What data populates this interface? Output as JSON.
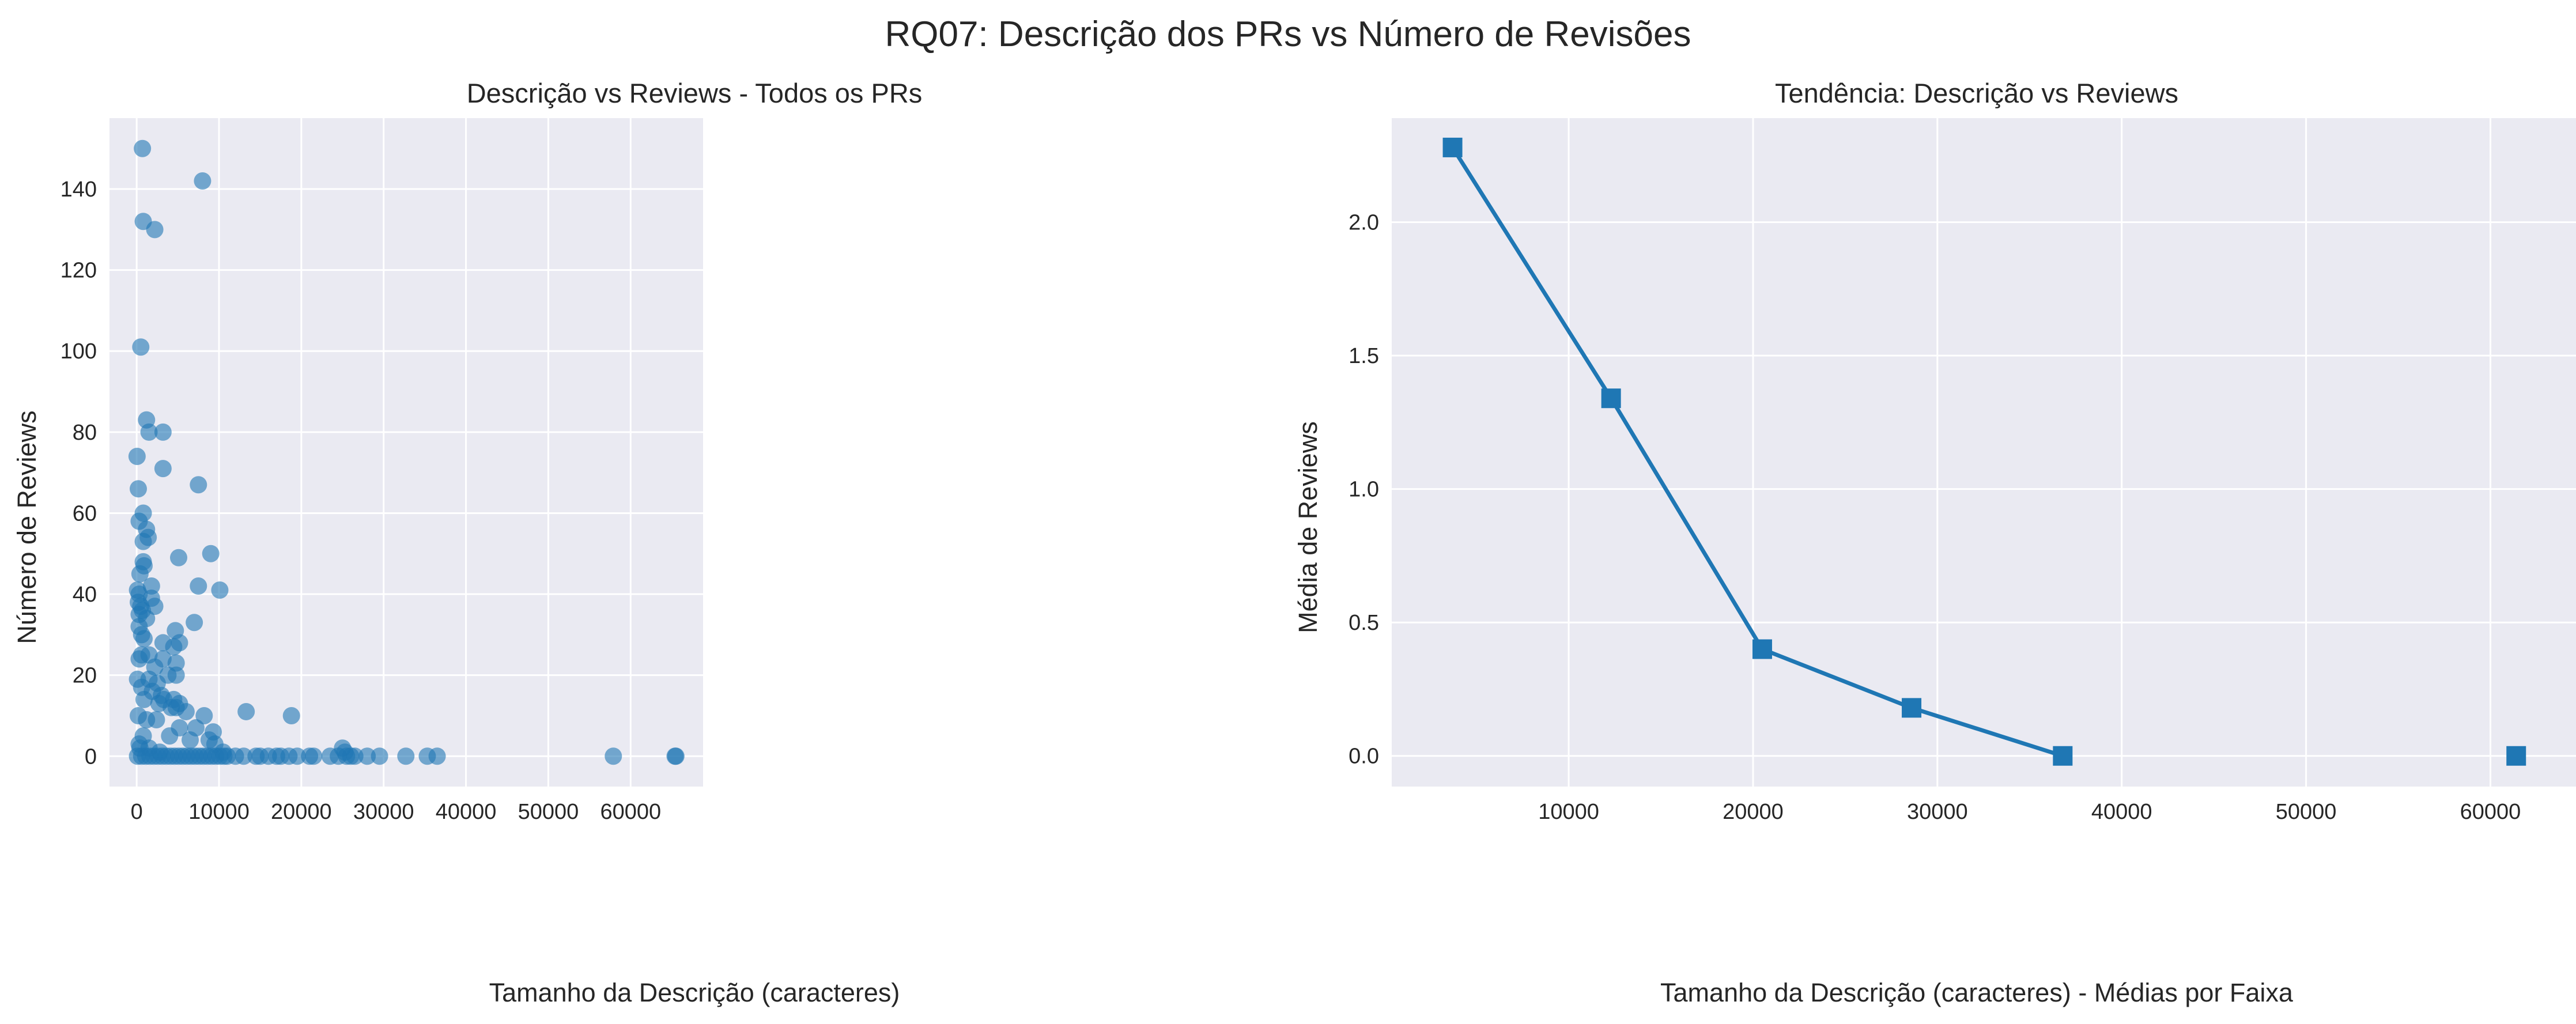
{
  "figure": {
    "suptitle": "RQ07: Descrição dos PRs vs Número de Revisões"
  },
  "colors": {
    "background": "#eaeaf2",
    "grid": "#ffffff",
    "series": "#1f77b4",
    "text": "#262626"
  },
  "chart_data": [
    {
      "type": "scatter",
      "title": "Descrição vs Reviews - Todos os PRs",
      "xlabel": "Tamanho da Descrição (caracteres)",
      "ylabel": "Número de Reviews",
      "xlim": [
        -3300,
        68800
      ],
      "ylim": [
        -7.5,
        157.5
      ],
      "xticks": [
        0,
        10000,
        20000,
        30000,
        40000,
        50000,
        60000
      ],
      "yticks": [
        0,
        20,
        40,
        60,
        80,
        100,
        120,
        140
      ],
      "grid": true,
      "marker": "circle",
      "alpha": 0.6,
      "series": [
        {
          "points": [
            [
              700,
              150
            ],
            [
              8000,
              142
            ],
            [
              800,
              132
            ],
            [
              2200,
              130
            ],
            [
              500,
              101
            ],
            [
              1200,
              83
            ],
            [
              1500,
              80
            ],
            [
              3200,
              80
            ],
            [
              50,
              74
            ],
            [
              3200,
              71
            ],
            [
              7500,
              67
            ],
            [
              200,
              66
            ],
            [
              800,
              60
            ],
            [
              300,
              58
            ],
            [
              1200,
              56
            ],
            [
              1400,
              54
            ],
            [
              800,
              53
            ],
            [
              5100,
              49
            ],
            [
              9000,
              50
            ],
            [
              800,
              48
            ],
            [
              900,
              47
            ],
            [
              400,
              45
            ],
            [
              1800,
              42
            ],
            [
              7500,
              42
            ],
            [
              10100,
              41
            ],
            [
              100,
              41
            ],
            [
              300,
              40
            ],
            [
              1800,
              39
            ],
            [
              200,
              38
            ],
            [
              500,
              37
            ],
            [
              2200,
              37
            ],
            [
              700,
              36
            ],
            [
              300,
              35
            ],
            [
              1200,
              34
            ],
            [
              7000,
              33
            ],
            [
              300,
              32
            ],
            [
              4700,
              31
            ],
            [
              600,
              30
            ],
            [
              900,
              29
            ],
            [
              3200,
              28
            ],
            [
              5200,
              28
            ],
            [
              4500,
              27
            ],
            [
              600,
              25
            ],
            [
              1500,
              25
            ],
            [
              3200,
              24
            ],
            [
              300,
              24
            ],
            [
              4800,
              23
            ],
            [
              2200,
              22
            ],
            [
              3800,
              20
            ],
            [
              4800,
              20
            ],
            [
              100,
              19
            ],
            [
              1500,
              19
            ],
            [
              2500,
              18
            ],
            [
              600,
              17
            ],
            [
              1900,
              16
            ],
            [
              3000,
              15
            ],
            [
              900,
              14
            ],
            [
              3300,
              14
            ],
            [
              4500,
              14
            ],
            [
              2700,
              13
            ],
            [
              4200,
              12
            ],
            [
              4800,
              12
            ],
            [
              5200,
              13
            ],
            [
              13300,
              11
            ],
            [
              6000,
              11
            ],
            [
              8200,
              10
            ],
            [
              18800,
              10
            ],
            [
              200,
              10
            ],
            [
              1200,
              9
            ],
            [
              2400,
              9
            ],
            [
              5200,
              7
            ],
            [
              7200,
              7
            ],
            [
              9300,
              6
            ],
            [
              800,
              5
            ],
            [
              4000,
              5
            ],
            [
              6500,
              4
            ],
            [
              8800,
              4
            ],
            [
              9500,
              3
            ],
            [
              300,
              3
            ],
            [
              1500,
              2
            ],
            [
              25000,
              2
            ],
            [
              25300,
              1
            ],
            [
              10500,
              1
            ],
            [
              400,
              2
            ],
            [
              2800,
              1
            ],
            [
              11000,
              0
            ],
            [
              12000,
              0
            ],
            [
              13000,
              0
            ],
            [
              14500,
              0
            ],
            [
              15000,
              0
            ],
            [
              16000,
              0
            ],
            [
              17000,
              0
            ],
            [
              17500,
              0
            ],
            [
              18500,
              0
            ],
            [
              19500,
              0
            ],
            [
              21000,
              0
            ],
            [
              21500,
              0
            ],
            [
              23500,
              0
            ],
            [
              24500,
              0
            ],
            [
              25500,
              0
            ],
            [
              26000,
              0
            ],
            [
              26500,
              0
            ],
            [
              28000,
              0
            ],
            [
              29500,
              0
            ],
            [
              32700,
              0
            ],
            [
              35300,
              0
            ],
            [
              36500,
              0
            ],
            [
              57900,
              0
            ],
            [
              65400,
              0
            ],
            [
              65500,
              0
            ],
            [
              100,
              0
            ],
            [
              600,
              0
            ],
            [
              1100,
              0
            ],
            [
              1600,
              0
            ],
            [
              2100,
              0
            ],
            [
              2600,
              0
            ],
            [
              3100,
              0
            ],
            [
              3600,
              0
            ],
            [
              4100,
              0
            ],
            [
              4600,
              0
            ],
            [
              5100,
              0
            ],
            [
              5600,
              0
            ],
            [
              6100,
              0
            ],
            [
              6600,
              0
            ],
            [
              7100,
              0
            ],
            [
              7600,
              0
            ],
            [
              8100,
              0
            ],
            [
              8600,
              0
            ],
            [
              9100,
              0
            ],
            [
              9600,
              0
            ],
            [
              10100,
              0
            ],
            [
              10600,
              0
            ]
          ]
        }
      ]
    },
    {
      "type": "line",
      "title": "Tendência: Descrição vs Reviews",
      "xlabel": "Tamanho da Descrição (caracteres) - Médias por Faixa",
      "ylabel": "Média de Reviews",
      "xlim": [
        400,
        64800
      ],
      "ylim": [
        -0.115,
        2.39
      ],
      "xticks": [
        10000,
        20000,
        30000,
        40000,
        50000,
        60000
      ],
      "yticks": [
        0.0,
        0.5,
        1.0,
        1.5,
        2.0
      ],
      "ytick_labels": [
        "0.0",
        "0.5",
        "1.0",
        "1.5",
        "2.0"
      ],
      "grid": true,
      "marker": "square",
      "series": [
        {
          "x": [
            3700,
            12300,
            20500,
            28600,
            36800,
            61400
          ],
          "y": [
            2.28,
            1.34,
            0.4,
            0.18,
            0.0,
            0.0
          ]
        }
      ]
    }
  ]
}
